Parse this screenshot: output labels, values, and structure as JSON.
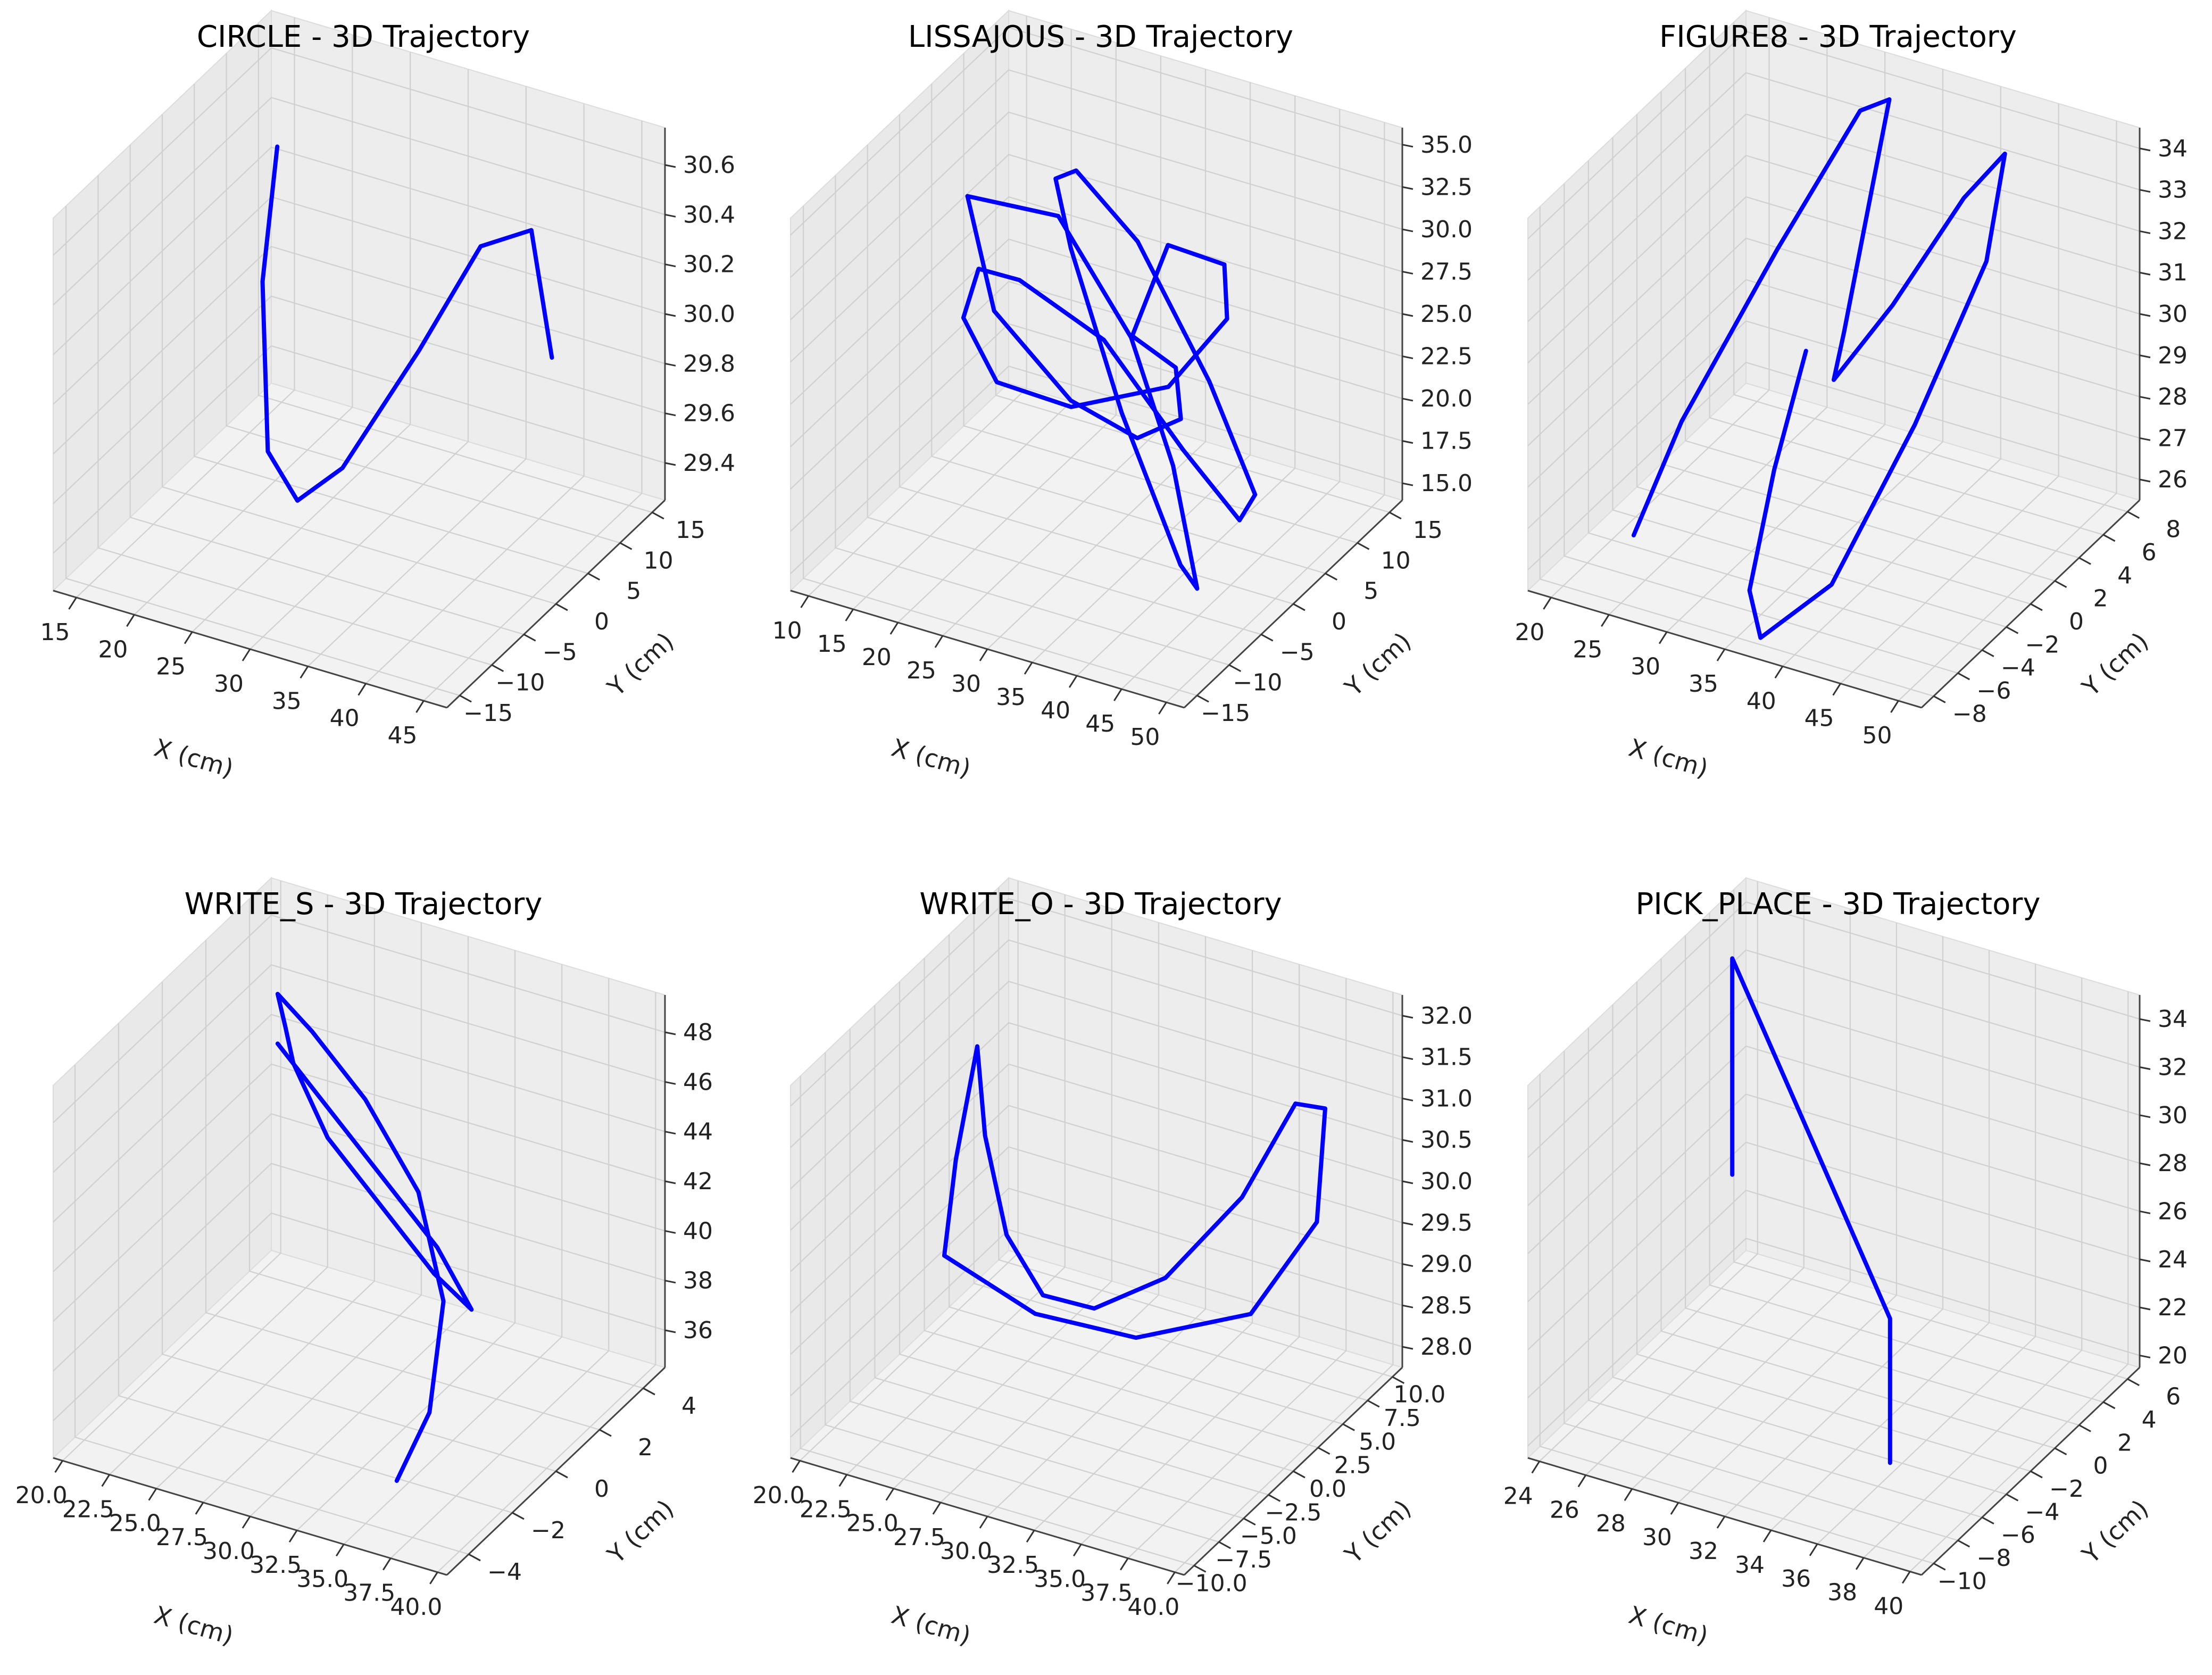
{
  "chart_data": [
    {
      "type": "line3d",
      "title": "CIRCLE - 3D Trajectory",
      "xlabel": "X (cm)",
      "ylabel": "Y (cm)",
      "zlabel": "",
      "xticks": [
        "15",
        "20",
        "25",
        "30",
        "35",
        "40",
        "45"
      ],
      "yticks": [
        "−15",
        "−10",
        "−5",
        "0",
        "5",
        "10",
        "15"
      ],
      "zticks": [
        "29.4",
        "29.6",
        "29.8",
        "30.0",
        "30.2",
        "30.4",
        "30.6"
      ],
      "xlim": [
        13,
        47
      ],
      "ylim": [
        -17,
        17
      ],
      "zlim": [
        29.25,
        30.75
      ],
      "trajectory": {
        "x": [
          18.5,
          20.0,
          23.5,
          28.0,
          33.0,
          38.5,
          40.5,
          41.0,
          40.0
        ],
        "y": [
          8.0,
          3.0,
          -2.5,
          -6.0,
          -8.0,
          -6.0,
          0.0,
          7.0,
          12.0
        ],
        "z": [
          30.5,
          30.1,
          29.6,
          29.55,
          29.8,
          30.3,
          30.6,
          30.5,
          29.85
        ]
      }
    },
    {
      "type": "line3d",
      "title": "LISSAJOUS - 3D Trajectory",
      "xlabel": "X (cm)",
      "ylabel": "Y (cm)",
      "zlabel": "",
      "xticks": [
        "10",
        "15",
        "20",
        "25",
        "30",
        "35",
        "40",
        "45",
        "50"
      ],
      "yticks": [
        "−15",
        "−10",
        "−5",
        "0",
        "5",
        "10",
        "15"
      ],
      "zticks": [
        "15.0",
        "17.5",
        "20.0",
        "22.5",
        "25.0",
        "27.5",
        "30.0",
        "32.5",
        "35.0"
      ],
      "xlim": [
        8,
        52
      ],
      "ylim": [
        -17,
        17
      ],
      "zlim": [
        14,
        36
      ],
      "trajectory": {
        "x": [
          12.0,
          20.0,
          31.0,
          40.0,
          47.0,
          48.0,
          40.0,
          30.0,
          24.0,
          22.0,
          26.0,
          34.0,
          42.0,
          46.0,
          44.0,
          38.0,
          30.0,
          24.0,
          18.0,
          16.0,
          20.0,
          28.0,
          36.0,
          40.0,
          38.0,
          34.0,
          36.0,
          38.0,
          36.0,
          30.0,
          20.0,
          12.0
        ],
        "y": [
          5.0,
          8.0,
          4.0,
          -2.0,
          -8.0,
          -12.0,
          -10.0,
          -4.0,
          2.0,
          8.0,
          12.0,
          12.0,
          8.0,
          0.0,
          -6.0,
          -10.0,
          -12.0,
          -10.0,
          -4.0,
          4.0,
          10.0,
          14.0,
          12.0,
          6.0,
          0.0,
          0.0,
          4.0,
          2.0,
          -2.0,
          -4.0,
          -2.0,
          5.0
        ],
        "z": [
          30.0,
          29.0,
          25.0,
          21.0,
          17.0,
          20.0,
          27.0,
          33.0,
          34.0,
          32.0,
          27.0,
          20.0,
          16.0,
          18.0,
          24.0,
          31.0,
          34.0,
          33.0,
          27.0,
          20.0,
          17.0,
          18.0,
          24.0,
          30.0,
          33.0,
          27.0,
          24.0,
          22.0,
          22.0,
          24.0,
          27.0,
          30.0
        ]
      }
    },
    {
      "type": "line3d",
      "title": "FIGURE8 - 3D Trajectory",
      "xlabel": "X (cm)",
      "ylabel": "Y (cm)",
      "zlabel": "",
      "xticks": [
        "20",
        "25",
        "30",
        "35",
        "40",
        "45",
        "50"
      ],
      "yticks": [
        "−8",
        "−6",
        "−4",
        "−2",
        "0",
        "2",
        "4",
        "6",
        "8"
      ],
      "zticks": [
        "26",
        "27",
        "28",
        "29",
        "30",
        "31",
        "32",
        "33",
        "34"
      ],
      "xlim": [
        18,
        52
      ],
      "ylim": [
        -9,
        9
      ],
      "zlim": [
        25.5,
        34.5
      ],
      "trajectory": {
        "x": [
          24.0,
          25.0,
          28.0,
          31.0,
          33.0,
          33.8,
          35.0,
          38.0,
          41.0,
          43.5,
          44.0,
          42.0,
          39.0,
          36.0,
          34.0,
          33.0,
          32.6
        ],
        "y": [
          -6.0,
          -3.0,
          2.0,
          6.0,
          6.5,
          2.0,
          0.0,
          2.0,
          5.0,
          6.0,
          4.0,
          0.0,
          -4.0,
          -7.0,
          -6.0,
          -3.0,
          0.0
        ],
        "z": [
          26.5,
          28.5,
          31.5,
          34.0,
          34.3,
          30.0,
          29.5,
          31.0,
          33.0,
          34.0,
          32.0,
          29.0,
          26.0,
          25.3,
          26.0,
          28.0,
          30.0
        ]
      }
    },
    {
      "type": "line3d",
      "title": "WRITE_S - 3D Trajectory",
      "xlabel": "X (cm)",
      "ylabel": "Y (cm)",
      "zlabel": "",
      "xticks": [
        "20.0",
        "22.5",
        "25.0",
        "27.5",
        "30.0",
        "32.5",
        "35.0",
        "37.5",
        "40.0"
      ],
      "yticks": [
        "−4",
        "−2",
        "0",
        "2",
        "4"
      ],
      "zticks": [
        "36",
        "38",
        "40",
        "42",
        "44",
        "46",
        "48"
      ],
      "xlim": [
        19.5,
        40.5
      ],
      "ylim": [
        -5,
        5
      ],
      "zlim": [
        34.5,
        49.5
      ],
      "trajectory": {
        "x": [
          21.0,
          25.0,
          29.0,
          33.0,
          36.0,
          34.0,
          30.0,
          26.0,
          23.0,
          22.0,
          21.0,
          24.0,
          28.0,
          32.0,
          34.5,
          35.5,
          35.5
        ],
        "y": [
          4.0,
          3.0,
          2.0,
          1.0,
          0.0,
          0.0,
          1.0,
          2.0,
          3.0,
          3.5,
          4.0,
          3.0,
          2.0,
          1.0,
          0.0,
          -1.5,
          -3.0
        ],
        "z": [
          44.0,
          43.0,
          42.0,
          41.0,
          40.0,
          41.0,
          42.0,
          43.0,
          44.5,
          45.3,
          46.0,
          46.0,
          45.0,
          43.0,
          40.0,
          37.0,
          35.5
        ]
      }
    },
    {
      "type": "line3d",
      "title": "WRITE_O - 3D Trajectory",
      "xlabel": "X (cm)",
      "ylabel": "Y (cm)",
      "zlabel": "",
      "xticks": [
        "20.0",
        "22.5",
        "25.0",
        "27.5",
        "30.0",
        "32.5",
        "35.0",
        "37.5",
        "40.0"
      ],
      "yticks": [
        "−10.0",
        "−7.5",
        "−5.0",
        "−2.5",
        "0.0",
        "2.5",
        "5.0",
        "7.5",
        "10.0"
      ],
      "zticks": [
        "28.0",
        "28.5",
        "29.0",
        "29.5",
        "30.0",
        "30.5",
        "31.0",
        "31.5",
        "32.0"
      ],
      "xlim": [
        19.5,
        40.5
      ],
      "ylim": [
        -11,
        11
      ],
      "zlim": [
        27.75,
        32.25
      ],
      "trajectory": {
        "x": [
          21.0,
          23.0,
          26.0,
          29.0,
          32.0,
          35.0,
          37.5,
          38.5,
          38.5,
          37.0,
          34.0,
          30.0,
          27.0,
          24.0,
          22.5,
          21.0
        ],
        "y": [
          5.0,
          2.0,
          -1.5,
          -3.5,
          -4.0,
          -2.5,
          0.5,
          4.0,
          7.0,
          9.0,
          8.0,
          4.0,
          -0.5,
          -4.0,
          0.0,
          5.0
        ],
        "z": [
          31.0,
          30.4,
          29.8,
          29.5,
          29.6,
          30.0,
          30.8,
          31.6,
          31.2,
          29.5,
          28.3,
          28.2,
          28.8,
          29.7,
          30.3,
          31.0
        ]
      }
    },
    {
      "type": "line3d",
      "title": "PICK_PLACE - 3D Trajectory",
      "xlabel": "X (cm)",
      "ylabel": "Y (cm)",
      "zlabel": "",
      "xticks": [
        "24",
        "26",
        "28",
        "30",
        "32",
        "34",
        "36",
        "38",
        "40"
      ],
      "yticks": [
        "−10",
        "−8",
        "−6",
        "−4",
        "−2",
        "0",
        "2",
        "4",
        "6"
      ],
      "zticks": [
        "20",
        "22",
        "24",
        "26",
        "28",
        "30",
        "32",
        "34"
      ],
      "xlim": [
        23.5,
        40.5
      ],
      "ylim": [
        -11,
        7
      ],
      "zlim": [
        19.5,
        35
      ],
      "trajectory": {
        "x": [
          25.0,
          25.0,
          36.0,
          36.0
        ],
        "y": [
          3.0,
          3.0,
          -5.0,
          -5.0
        ],
        "z": [
          25.0,
          34.0,
          26.0,
          20.0
        ]
      }
    }
  ]
}
